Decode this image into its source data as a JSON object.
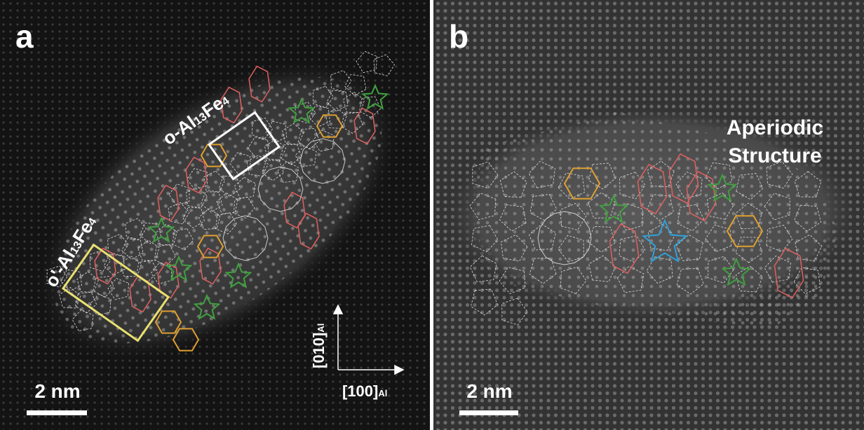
{
  "panel_a": {
    "label": "a",
    "phases": [
      {
        "parts": [
          "o-Al",
          "13",
          "Fe",
          "4"
        ]
      },
      {
        "parts": [
          "o'-Al",
          "13",
          "Fe",
          "4"
        ]
      }
    ],
    "axes": {
      "vertical": [
        "[010]",
        "Al"
      ],
      "horizontal": [
        "[100]",
        "Al"
      ]
    },
    "scale_bar": "2 nm"
  },
  "panel_b": {
    "label": "b",
    "annotation": [
      "Aperiodic",
      "Structure"
    ],
    "scale_bar": "2 nm"
  }
}
